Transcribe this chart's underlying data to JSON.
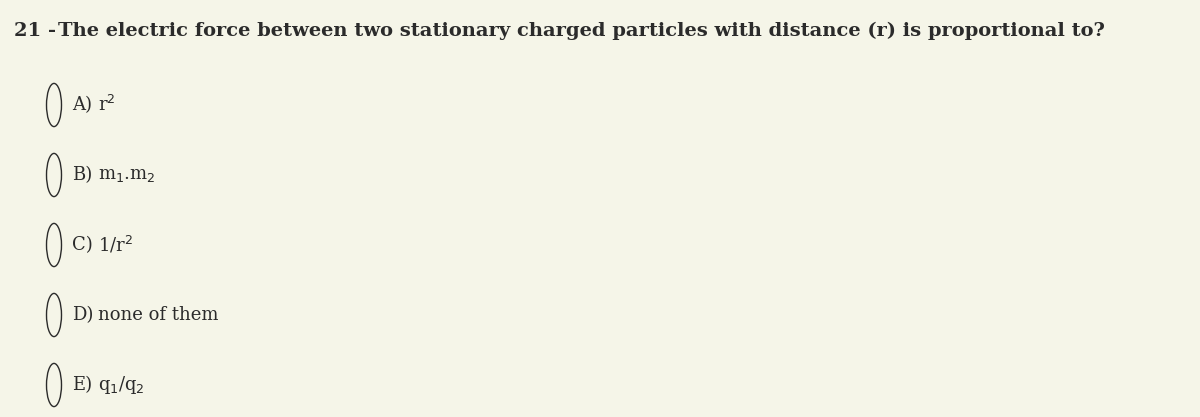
{
  "background_color": "#f5f5e8",
  "question_number": "21 -",
  "question_text": "The electric force between two stationary charged particles with distance (r) is proportional to?",
  "options": [
    {
      "label": "A)",
      "math": "r$^2$"
    },
    {
      "label": "B)",
      "math": "m$_1$.m$_2$"
    },
    {
      "label": "C)",
      "math": "1/r$^2$"
    },
    {
      "label": "D)",
      "math": "none of them"
    },
    {
      "label": "E)",
      "math": "q$_1$/q$_2$"
    }
  ],
  "q_number_fontsize": 14,
  "q_text_fontsize": 14,
  "option_label_fontsize": 13,
  "option_text_fontsize": 13,
  "text_color": "#2b2b2b",
  "fig_width": 12.0,
  "fig_height": 4.17,
  "dpi": 100
}
